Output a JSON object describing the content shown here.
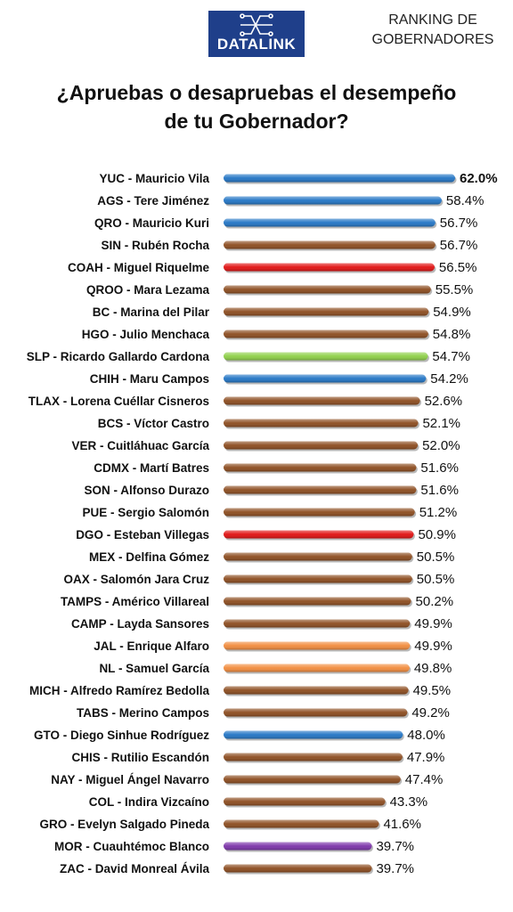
{
  "header": {
    "brand": "DATALINK",
    "ranking_line1": "RANKING DE",
    "ranking_line2": "GOBERNADORES",
    "title_line1": "¿Apruebas o desapruebas el desempeño",
    "title_line2": "de tu Gobernador?"
  },
  "icons": {
    "logo": "circuit-logo-icon"
  },
  "colors": {
    "PAN": "#1f73c4",
    "MORENA": "#8b4a1c",
    "PRI": "#e00d0d",
    "PVEM": "#8ccf45",
    "MC": "#f28a3a",
    "purple": "#7a30a8"
  },
  "chart_data": {
    "type": "bar",
    "orientation": "horizontal",
    "title": "¿Apruebas o desapruebas el desempeño de tu Gobernador?",
    "unit": "%",
    "categories": [
      "YUC - Mauricio Vila",
      "AGS - Tere Jiménez",
      "QRO - Mauricio Kuri",
      "SIN - Rubén Rocha",
      "COAH - Miguel Riquelme",
      "QROO - Mara Lezama",
      "BC - Marina del Pilar",
      "HGO - Julio Menchaca",
      "SLP - Ricardo Gallardo Cardona",
      "CHIH - Maru Campos",
      "TLAX - Lorena Cuéllar Cisneros",
      "BCS - Víctor Castro",
      "VER - Cuitláhuac García",
      "CDMX - Martí Batres",
      "SON - Alfonso Durazo",
      "PUE - Sergio Salomón",
      "DGO - Esteban Villegas",
      "MEX - Delfina Gómez",
      "OAX - Salomón Jara Cruz",
      "TAMPS - Américo Villareal",
      "CAMP - Layda Sansores",
      "JAL - Enrique Alfaro",
      "NL - Samuel García",
      "MICH - Alfredo Ramírez Bedolla",
      "TABS - Merino Campos",
      "GTO - Diego Sinhue Rodríguez",
      "CHIS - Rutilio Escandón",
      "NAY - Miguel Ángel Navarro",
      "COL - Indira Vizcaíno",
      "GRO - Evelyn Salgado Pineda",
      "MOR - Cuauhtémoc Blanco",
      "ZAC - David Monreal Ávila"
    ],
    "values": [
      62.0,
      58.4,
      56.7,
      56.7,
      56.5,
      55.5,
      54.9,
      54.8,
      54.7,
      54.2,
      52.6,
      52.1,
      52.0,
      51.6,
      51.6,
      51.2,
      50.9,
      50.5,
      50.5,
      50.2,
      49.9,
      49.9,
      49.8,
      49.5,
      49.2,
      48.0,
      47.9,
      47.4,
      43.3,
      41.6,
      39.7,
      39.7
    ],
    "value_labels": [
      "62.0%",
      "58.4%",
      "56.7%",
      "56.7%",
      "56.5%",
      "55.5%",
      "54.9%",
      "54.8%",
      "54.7%",
      "54.2%",
      "52.6%",
      "52.1%",
      "52.0%",
      "51.6%",
      "51.6%",
      "51.2%",
      "50.9%",
      "50.5%",
      "50.5%",
      "50.2%",
      "49.9%",
      "49.9%",
      "49.8%",
      "49.5%",
      "49.2%",
      "48.0%",
      "47.9%",
      "47.4%",
      "43.3%",
      "41.6%",
      "39.7%",
      "39.7%"
    ],
    "bar_colors": [
      "#1f73c4",
      "#1f73c4",
      "#1f73c4",
      "#8b4a1c",
      "#e00d0d",
      "#8b4a1c",
      "#8b4a1c",
      "#8b4a1c",
      "#8ccf45",
      "#1f73c4",
      "#8b4a1c",
      "#8b4a1c",
      "#8b4a1c",
      "#8b4a1c",
      "#8b4a1c",
      "#8b4a1c",
      "#e00d0d",
      "#8b4a1c",
      "#8b4a1c",
      "#8b4a1c",
      "#8b4a1c",
      "#f28a3a",
      "#f28a3a",
      "#8b4a1c",
      "#8b4a1c",
      "#1f73c4",
      "#8b4a1c",
      "#8b4a1c",
      "#8b4a1c",
      "#8b4a1c",
      "#7a30a8",
      "#8b4a1c"
    ],
    "highlight_first_value": true,
    "grid": false,
    "xlim": [
      0,
      62.0
    ]
  }
}
